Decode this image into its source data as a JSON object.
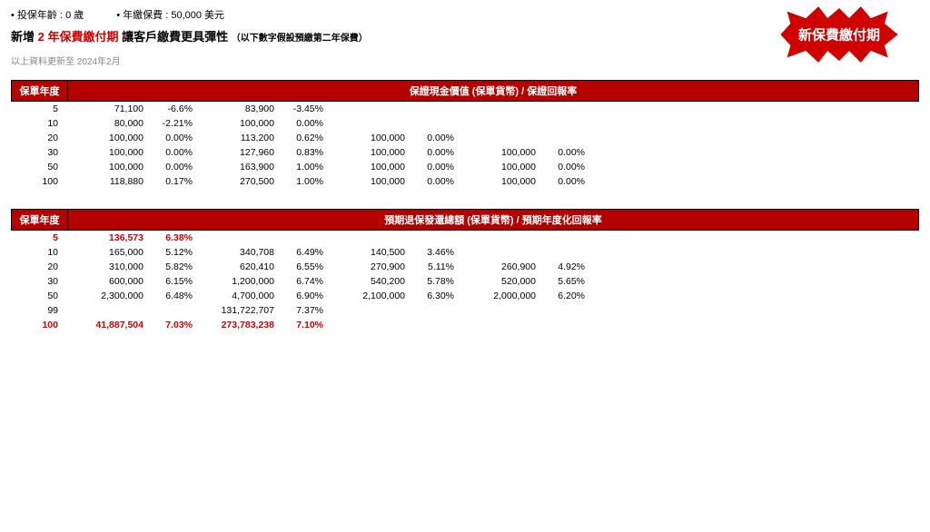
{
  "colors": {
    "brand_red": "#b60000",
    "text_red": "#d00000",
    "gray": "#888"
  },
  "header": {
    "bullet1": "投保年齡 : 0 歲",
    "bullet2": "年繳保費 : 50,000 美元",
    "title_pre": "新增",
    "title_payterm": "2 年保費繳付期",
    "title_post": "讓客戶繳費更具彈性",
    "note_prepay": "（以下數字假設預繳第二年保費）",
    "note_date": "以上資料更新至 2024年2月",
    "starburst": "新保費繳付期"
  },
  "table1": {
    "header_year": "保單年度",
    "header_main": "保證現金價值 (保單貨幣) / 保證回報率",
    "highlight_years": [],
    "rows": [
      {
        "year": "5",
        "v1": "71,100",
        "p1": "-6.6%",
        "v2": "83,900",
        "p2": "-3.45%",
        "v3": "",
        "p3": "",
        "v4": "",
        "p4": "",
        "v5": "",
        "p5": "",
        "v6": "",
        "p6": ""
      },
      {
        "year": "10",
        "v1": "80,000",
        "p1": "-2.21%",
        "v2": "100,000",
        "p2": "0.00%",
        "v3": "",
        "p3": "",
        "v4": "",
        "p4": "",
        "v5": "",
        "p5": "",
        "v6": "",
        "p6": ""
      },
      {
        "year": "20",
        "v1": "100,000",
        "p1": "0.00%",
        "v2": "113,200",
        "p2": "0.62%",
        "v3": "100,000",
        "p3": "0.00%",
        "v4": "",
        "p4": "",
        "v5": "",
        "p5": "",
        "v6": "",
        "p6": ""
      },
      {
        "year": "30",
        "v1": "100,000",
        "p1": "0.00%",
        "v2": "127,960",
        "p2": "0.83%",
        "v3": "100,000",
        "p3": "0.00%",
        "v4": "100,000",
        "p4": "0.00%",
        "v5": "",
        "p5": "",
        "v6": "",
        "p6": ""
      },
      {
        "year": "50",
        "v1": "100,000",
        "p1": "0.00%",
        "v2": "163,900",
        "p2": "1.00%",
        "v3": "100,000",
        "p3": "0.00%",
        "v4": "100,000",
        "p4": "0.00%",
        "v5": "",
        "p5": "",
        "v6": "",
        "p6": ""
      },
      {
        "year": "100",
        "v1": "118,880",
        "p1": "0.17%",
        "v2": "270,500",
        "p2": "1.00%",
        "v3": "100,000",
        "p3": "0.00%",
        "v4": "100,000",
        "p4": "0.00%",
        "v5": "",
        "p5": "",
        "v6": "",
        "p6": ""
      }
    ]
  },
  "table2": {
    "header_year": "保單年度",
    "header_main": "預期退保發還總額 (保單貨幣) / 預期年度化回報率",
    "highlight_years": [
      "5",
      "100"
    ],
    "rows": [
      {
        "year": "5",
        "v1": "136,573",
        "p1": "6.38%",
        "v2": "",
        "p2": "",
        "v3": "",
        "p3": "",
        "v4": "",
        "p4": "",
        "v5": "",
        "p5": "",
        "v6": "",
        "p6": ""
      },
      {
        "year": "10",
        "v1": "165,000",
        "p1": "5.12%",
        "v2": "340,708",
        "p2": "6.49%",
        "v3": "140,500",
        "p3": "3.46%",
        "v4": "",
        "p4": "",
        "v5": "",
        "p5": "",
        "v6": "",
        "p6": ""
      },
      {
        "year": "20",
        "v1": "310,000",
        "p1": "5.82%",
        "v2": "620,410",
        "p2": "6.55%",
        "v3": "270,900",
        "p3": "5.11%",
        "v4": "260,900",
        "p4": "4.92%",
        "v5": "",
        "p5": "",
        "v6": "",
        "p6": ""
      },
      {
        "year": "30",
        "v1": "600,000",
        "p1": "6.15%",
        "v2": "1,200,000",
        "p2": "6.74%",
        "v3": "540,200",
        "p3": "5.78%",
        "v4": "520,000",
        "p4": "5.65%",
        "v5": "",
        "p5": "",
        "v6": "",
        "p6": ""
      },
      {
        "year": "50",
        "v1": "2,300,000",
        "p1": "6.48%",
        "v2": "4,700,000",
        "p2": "6.90%",
        "v3": "2,100,000",
        "p3": "6.30%",
        "v4": "2,000,000",
        "p4": "6.20%",
        "v5": "",
        "p5": "",
        "v6": "",
        "p6": ""
      },
      {
        "year": "99",
        "v1": "",
        "p1": "",
        "v2": "131,722,707",
        "p2": "7.37%",
        "v3": "",
        "p3": "",
        "v4": "",
        "p4": "",
        "v5": "",
        "p5": "",
        "v6": "",
        "p6": ""
      },
      {
        "year": "100",
        "v1": "41,887,504",
        "p1": "7.03%",
        "v2": "273,783,238",
        "p2": "7.10%",
        "v3": "",
        "p3": "",
        "v4": "",
        "p4": "",
        "v5": "",
        "p5": "",
        "v6": "",
        "p6": ""
      }
    ]
  }
}
